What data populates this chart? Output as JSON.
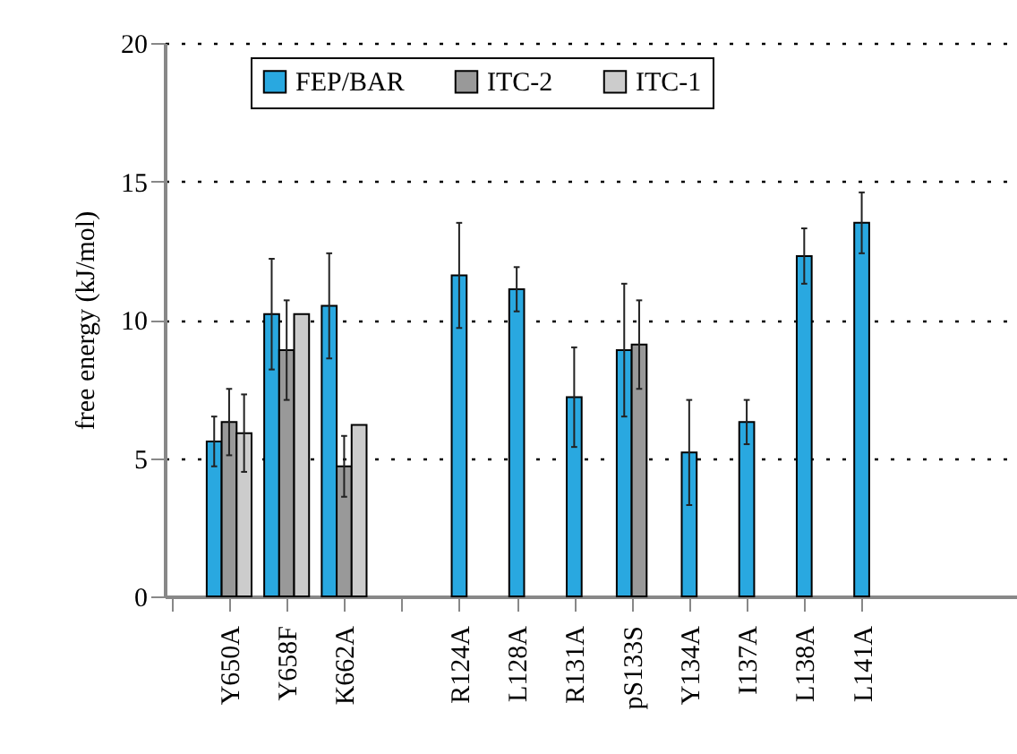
{
  "chart_data": {
    "type": "bar",
    "ylabel": "free energy (kJ/mol)",
    "categories": [
      null,
      "Y650A",
      "Y658F",
      "K662A",
      null,
      "R124A",
      "L128A",
      "R131A",
      "pS133S",
      "Y134A",
      "I137A",
      "L138A",
      "L141A"
    ],
    "series": [
      {
        "name": "FEP/BAR",
        "color": "#29a8e0",
        "values": [
          null,
          5.6,
          10.2,
          10.5,
          null,
          11.6,
          11.1,
          7.2,
          8.9,
          5.2,
          6.3,
          12.3,
          13.5
        ],
        "errors": [
          null,
          0.9,
          2.0,
          1.9,
          null,
          1.9,
          0.8,
          1.8,
          2.4,
          1.9,
          0.8,
          1.0,
          1.1
        ]
      },
      {
        "name": "ITC-2",
        "color": "#999999",
        "values": [
          null,
          6.3,
          8.9,
          4.7,
          null,
          null,
          null,
          null,
          9.1,
          null,
          null,
          null,
          null
        ],
        "errors": [
          null,
          1.2,
          1.8,
          1.1,
          null,
          null,
          null,
          null,
          1.6,
          null,
          null,
          null,
          null
        ]
      },
      {
        "name": "ITC-1",
        "color": "#cccccc",
        "values": [
          null,
          5.9,
          10.2,
          6.2,
          null,
          null,
          null,
          null,
          null,
          null,
          null,
          null,
          null
        ],
        "errors": [
          null,
          1.4,
          null,
          null,
          null,
          null,
          null,
          null,
          null,
          null,
          null,
          null,
          null
        ]
      }
    ],
    "ylim": [
      0,
      20
    ],
    "yticks": [
      0,
      5,
      10,
      15,
      20
    ],
    "grid": "y",
    "legend": "top"
  }
}
